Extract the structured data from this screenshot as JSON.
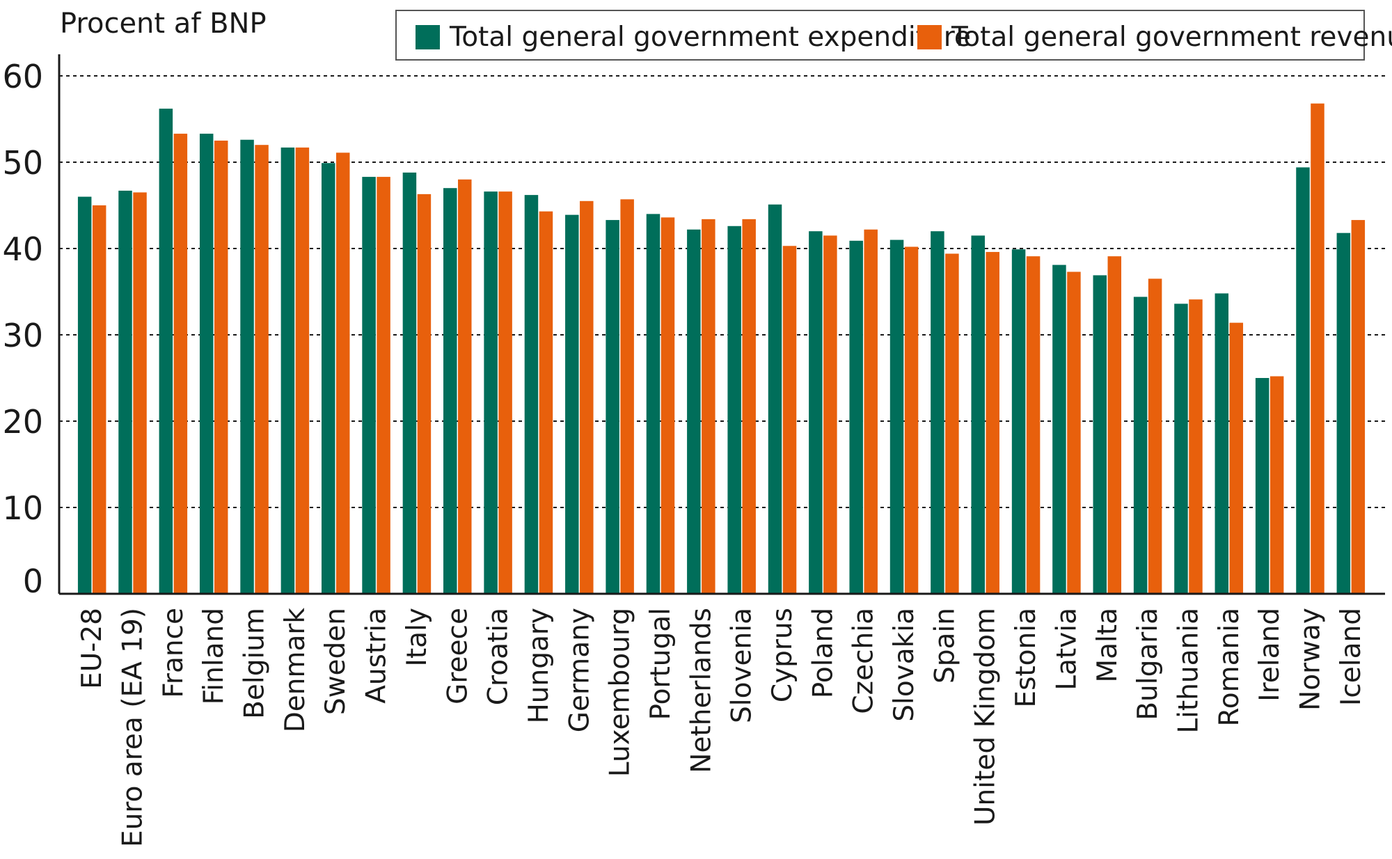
{
  "chart_data": {
    "type": "bar",
    "ylabel": "Procent af BNP",
    "ylim": [
      0,
      60
    ],
    "yticks": [
      0,
      10,
      20,
      30,
      40,
      50,
      60
    ],
    "grid": true,
    "legend_position": "top-right",
    "categories": [
      "EU-28",
      "Euro area (EA 19)",
      "France",
      "Finland",
      "Belgium",
      "Denmark",
      "Sweden",
      "Austria",
      "Italy",
      "Greece",
      "Croatia",
      "Hungary",
      "Germany",
      "Luxembourg",
      "Portugal",
      "Netherlands",
      "Slovenia",
      "Cyprus",
      "Poland",
      "Czechia",
      "Slovakia",
      "Spain",
      "United Kingdom",
      "Estonia",
      "Latvia",
      "Malta",
      "Bulgaria",
      "Lithuania",
      "Romania",
      "Ireland",
      "Norway",
      "Iceland"
    ],
    "series": [
      {
        "name": "Total general government expenditure",
        "color": "#006e5a",
        "values": [
          46.0,
          46.7,
          56.2,
          53.3,
          52.6,
          51.7,
          49.9,
          48.3,
          48.8,
          47.0,
          46.6,
          46.2,
          43.9,
          43.3,
          44.0,
          42.2,
          42.6,
          45.1,
          42.0,
          40.9,
          41.0,
          42.0,
          41.5,
          39.9,
          38.1,
          36.9,
          34.4,
          33.6,
          34.8,
          25.0,
          49.4,
          41.8
        ]
      },
      {
        "name": "Total general government revenue",
        "color": "#e8600c",
        "values": [
          45.0,
          46.5,
          53.3,
          52.5,
          52.0,
          51.7,
          51.1,
          48.3,
          46.3,
          48.0,
          46.6,
          44.3,
          45.5,
          45.7,
          43.6,
          43.4,
          43.4,
          40.3,
          41.5,
          42.2,
          40.2,
          39.4,
          39.6,
          39.1,
          37.3,
          39.1,
          36.5,
          34.1,
          31.4,
          25.2,
          56.8,
          43.3
        ]
      }
    ]
  }
}
